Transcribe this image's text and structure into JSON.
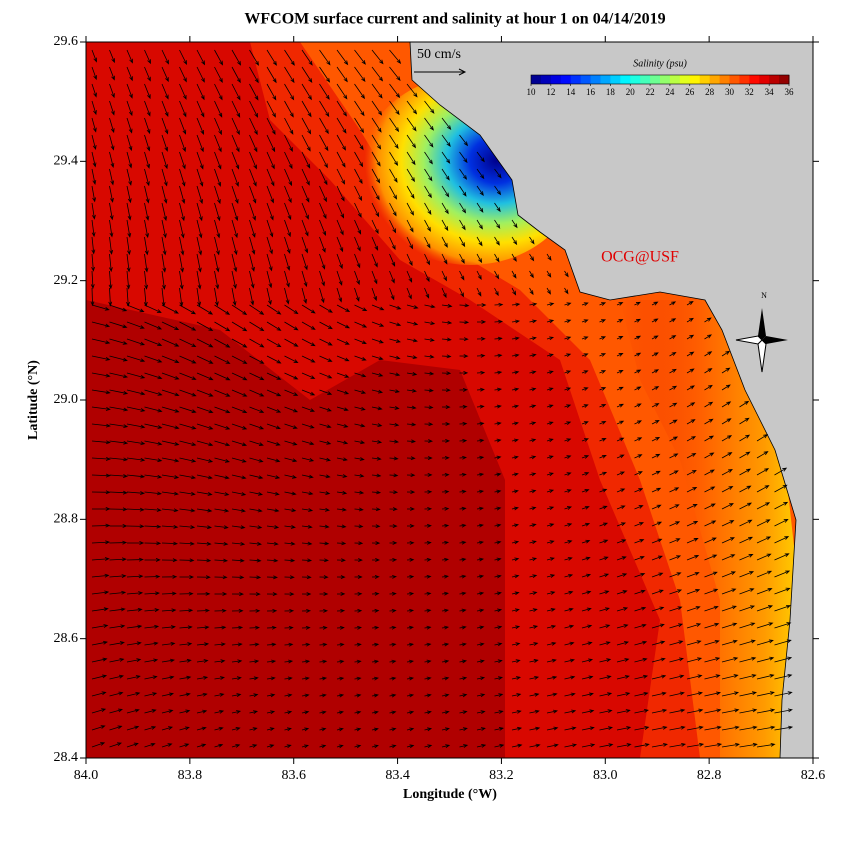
{
  "title": "WFCOM surface current and salinity at hour 1 on 04/14/2019",
  "x_axis": {
    "label": "Longitude (°W)",
    "lim": [
      84.0,
      82.6
    ],
    "ticks": [
      {
        "value": 84.0,
        "label": "84.0"
      },
      {
        "value": 83.8,
        "label": "83.8"
      },
      {
        "value": 83.6,
        "label": "83.6"
      },
      {
        "value": 83.4,
        "label": "83.4"
      },
      {
        "value": 83.2,
        "label": "83.2"
      },
      {
        "value": 83.0,
        "label": "83.0"
      },
      {
        "value": 82.8,
        "label": "82.8"
      },
      {
        "value": 82.6,
        "label": "82.6"
      }
    ]
  },
  "y_axis": {
    "label": "Latitude (°N)",
    "lim": [
      28.4,
      29.6
    ],
    "ticks": [
      {
        "value": 28.4,
        "label": "28.4"
      },
      {
        "value": 28.6,
        "label": "28.6"
      },
      {
        "value": 28.8,
        "label": "28.8"
      },
      {
        "value": 29.0,
        "label": "29.0"
      },
      {
        "value": 29.2,
        "label": "29.2"
      },
      {
        "value": 29.4,
        "label": "29.4"
      },
      {
        "value": 29.6,
        "label": "29.6"
      }
    ]
  },
  "scale_arrow": "50 cm/s",
  "colorbar": {
    "title": "Salinity (psu)",
    "lim": [
      10,
      36
    ],
    "ticks": [
      10,
      12,
      14,
      16,
      18,
      20,
      22,
      24,
      26,
      28,
      30,
      32,
      34,
      36
    ]
  },
  "watermark": "OCG@USF",
  "compass": "N"
}
